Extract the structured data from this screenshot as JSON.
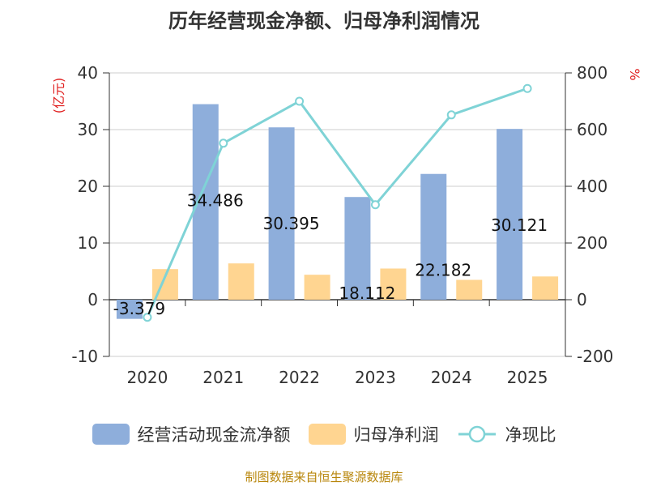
{
  "page": {
    "title": "历年经营现金净额、归母净利润情况",
    "source": "制图数据来自恒生聚源数据库"
  },
  "colors": {
    "cash_flow": "#8eaedb",
    "net_profit": "#ffd591",
    "ratio_line": "#7fd3d6",
    "grid": "#cccccc",
    "axis": "#333333",
    "unit_text": "#e02020"
  },
  "chart_data": {
    "type": "bar",
    "title": "历年经营现金净额、归母净利润情况",
    "categories": [
      "2020",
      "2021",
      "2022",
      "2023",
      "2024",
      "2025"
    ],
    "y_left": {
      "unit": "(亿元)",
      "range": [
        -10,
        40
      ],
      "ticks": [
        "-10",
        "0",
        "10",
        "20",
        "30",
        "40"
      ]
    },
    "y_right": {
      "unit": "%",
      "range": [
        -200,
        800
      ],
      "ticks": [
        "-200",
        "0",
        "200",
        "400",
        "600",
        "800"
      ]
    },
    "grid": true,
    "legend_position": "bottom",
    "series": [
      {
        "name": "经营活动现金流净额",
        "type": "bar",
        "axis": "left",
        "values": [
          -3.379,
          34.486,
          30.395,
          18.112,
          22.182,
          30.121
        ],
        "labels": [
          "-3.379",
          "34.486",
          "30.395",
          "18.112",
          "22.182",
          "30.121"
        ]
      },
      {
        "name": "归母净利润",
        "type": "bar",
        "axis": "left",
        "values": [
          5.4,
          6.4,
          4.4,
          5.5,
          3.5,
          4.1
        ]
      },
      {
        "name": "净现比",
        "type": "line",
        "axis": "right",
        "values": [
          -62,
          552,
          700,
          335,
          652,
          745
        ]
      }
    ]
  }
}
